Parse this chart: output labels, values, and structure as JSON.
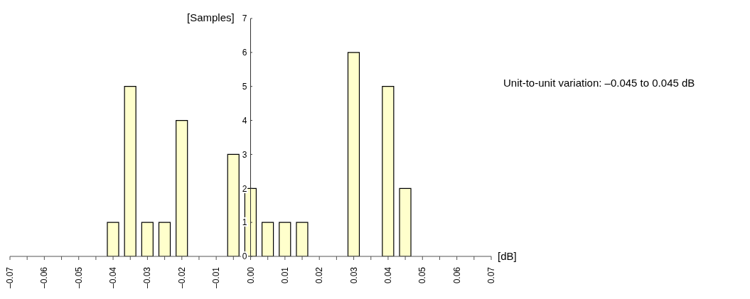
{
  "chart_data": {
    "type": "bar",
    "ylabel": "[Samples]",
    "xlabel": "[dB]",
    "annotations": [
      "Unit-to-unit variation: –0.045 to 0.045 dB"
    ],
    "x": [
      -0.04,
      -0.035,
      -0.03,
      -0.025,
      -0.02,
      -0.005,
      0.0,
      0.005,
      0.01,
      0.015,
      0.03,
      0.04,
      0.045
    ],
    "values": [
      1,
      5,
      1,
      1,
      4,
      3,
      2,
      1,
      1,
      1,
      6,
      5,
      2
    ],
    "color": "#ffffcc",
    "xlim": [
      -0.07,
      0.07
    ],
    "xticks": [
      {
        "value": -0.07,
        "label": "–0.07"
      },
      {
        "value": -0.065,
        "label": null
      },
      {
        "value": -0.06,
        "label": "–0.06"
      },
      {
        "value": -0.055,
        "label": null
      },
      {
        "value": -0.05,
        "label": "–0.05"
      },
      {
        "value": -0.045,
        "label": null
      },
      {
        "value": -0.04,
        "label": "–0.04"
      },
      {
        "value": -0.035,
        "label": null
      },
      {
        "value": -0.03,
        "label": "–0.03"
      },
      {
        "value": -0.025,
        "label": null
      },
      {
        "value": -0.02,
        "label": "–0.02"
      },
      {
        "value": -0.015,
        "label": null
      },
      {
        "value": -0.01,
        "label": "–0.01"
      },
      {
        "value": -0.005,
        "label": null
      },
      {
        "value": 0,
        "label": "0.00"
      },
      {
        "value": 0.005,
        "label": null
      },
      {
        "value": 0.01,
        "label": "0.01"
      },
      {
        "value": 0.015,
        "label": null
      },
      {
        "value": 0.02,
        "label": "0.02"
      },
      {
        "value": 0.025,
        "label": null
      },
      {
        "value": 0.03,
        "label": "0.03"
      },
      {
        "value": 0.035,
        "label": null
      },
      {
        "value": 0.04,
        "label": "0.04"
      },
      {
        "value": 0.045,
        "label": null
      },
      {
        "value": 0.05,
        "label": "0.05"
      },
      {
        "value": 0.055,
        "label": null
      },
      {
        "value": 0.06,
        "label": "0.06"
      },
      {
        "value": 0.065,
        "label": null
      },
      {
        "value": 0.07,
        "label": "0.07"
      }
    ],
    "ylim": [
      0,
      7
    ],
    "yticks": [
      0,
      1,
      2,
      3,
      4,
      5,
      6,
      7
    ]
  }
}
